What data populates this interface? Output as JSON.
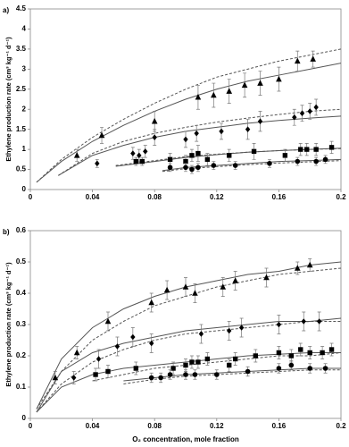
{
  "chart_data": [
    {
      "type": "scatter",
      "panel": "a)",
      "ylabel": "Ethylene production rate (cm³ kg⁻¹ d⁻¹)",
      "xlim": [
        0,
        0.2
      ],
      "xticks": [
        0,
        0.04,
        0.08,
        0.12,
        0.16,
        0.2
      ],
      "ylim": [
        0,
        4.5
      ],
      "yticks": [
        0,
        0.5,
        1,
        1.5,
        2,
        2.5,
        3,
        3.5,
        4,
        4.5
      ],
      "series": [
        {
          "marker": "triangle",
          "color": "#000000",
          "x": [
            0.03,
            0.046,
            0.08,
            0.108,
            0.118,
            0.128,
            0.138,
            0.148,
            0.16,
            0.172,
            0.182
          ],
          "values": [
            0.85,
            1.35,
            1.7,
            2.3,
            2.35,
            2.45,
            2.6,
            2.65,
            2.75,
            3.2,
            3.25
          ],
          "errors": [
            0.15,
            0.2,
            0.25,
            0.3,
            0.3,
            0.3,
            0.3,
            0.3,
            0.3,
            0.25,
            0.2
          ]
        },
        {
          "marker": "diamond",
          "color": "#000000",
          "x": [
            0.043,
            0.066,
            0.07,
            0.074,
            0.08,
            0.1,
            0.107,
            0.123,
            0.14,
            0.148,
            0.17,
            0.175,
            0.18,
            0.184
          ],
          "values": [
            0.65,
            0.9,
            0.85,
            0.95,
            1.3,
            1.25,
            1.4,
            1.45,
            1.5,
            1.7,
            1.8,
            1.9,
            1.95,
            2.05
          ],
          "errors": [
            0.1,
            0.15,
            0.15,
            0.15,
            0.2,
            0.2,
            0.2,
            0.2,
            0.25,
            0.25,
            0.2,
            0.2,
            0.2,
            0.2
          ]
        },
        {
          "marker": "square",
          "color": "#000000",
          "x": [
            0.068,
            0.072,
            0.09,
            0.1,
            0.104,
            0.108,
            0.114,
            0.128,
            0.144,
            0.164,
            0.174,
            0.178,
            0.184,
            0.194
          ],
          "values": [
            0.7,
            0.7,
            0.75,
            0.7,
            0.85,
            0.9,
            0.75,
            0.85,
            0.95,
            0.85,
            1,
            1,
            1,
            1.05
          ],
          "errors": [
            0.1,
            0.1,
            0.15,
            0.15,
            0.15,
            0.2,
            0.15,
            0.15,
            0.2,
            0.15,
            0.15,
            0.15,
            0.15,
            0.15
          ]
        },
        {
          "marker": "circle",
          "color": "#000000",
          "x": [
            0.09,
            0.1,
            0.104,
            0.108,
            0.118,
            0.132,
            0.154,
            0.172,
            0.184,
            0.19
          ],
          "values": [
            0.55,
            0.55,
            0.5,
            0.55,
            0.6,
            0.6,
            0.65,
            0.7,
            0.7,
            0.75
          ],
          "errors": [
            0.1,
            0.1,
            0.1,
            0.1,
            0.1,
            0.1,
            0.1,
            0.1,
            0.1,
            0.1
          ]
        }
      ],
      "curves": [
        {
          "dashed": false,
          "color": "#555555",
          "x": [
            0.004,
            0.02,
            0.04,
            0.06,
            0.08,
            0.1,
            0.12,
            0.14,
            0.16,
            0.18,
            0.2
          ],
          "values": [
            0.18,
            0.7,
            1.2,
            1.6,
            1.95,
            2.25,
            2.5,
            2.7,
            2.85,
            3,
            3.15
          ]
        },
        {
          "dashed": true,
          "color": "#555555",
          "x": [
            0.004,
            0.02,
            0.04,
            0.06,
            0.08,
            0.1,
            0.12,
            0.14,
            0.16,
            0.18,
            0.2
          ],
          "values": [
            0.18,
            0.75,
            1.3,
            1.75,
            2.15,
            2.5,
            2.8,
            3,
            3.2,
            3.35,
            3.5
          ]
        },
        {
          "dashed": false,
          "color": "#555555",
          "x": [
            0.018,
            0.04,
            0.06,
            0.08,
            0.1,
            0.12,
            0.14,
            0.16,
            0.18,
            0.2
          ],
          "values": [
            0.35,
            0.85,
            1.1,
            1.3,
            1.45,
            1.55,
            1.65,
            1.72,
            1.78,
            1.83
          ]
        },
        {
          "dashed": true,
          "color": "#555555",
          "x": [
            0.018,
            0.04,
            0.06,
            0.08,
            0.1,
            0.12,
            0.14,
            0.16,
            0.18,
            0.2
          ],
          "values": [
            0.35,
            0.9,
            1.2,
            1.4,
            1.55,
            1.68,
            1.78,
            1.87,
            1.95,
            2
          ]
        },
        {
          "dashed": false,
          "color": "#555555",
          "x": [
            0.055,
            0.08,
            0.1,
            0.12,
            0.14,
            0.16,
            0.18,
            0.2
          ],
          "values": [
            0.58,
            0.7,
            0.8,
            0.87,
            0.93,
            0.97,
            1,
            1.03
          ]
        },
        {
          "dashed": true,
          "color": "#555555",
          "x": [
            0.055,
            0.08,
            0.1,
            0.12,
            0.14,
            0.16,
            0.18,
            0.2
          ],
          "values": [
            0.6,
            0.72,
            0.82,
            0.88,
            0.93,
            0.97,
            1,
            1.02
          ]
        },
        {
          "dashed": false,
          "color": "#555555",
          "x": [
            0.085,
            0.1,
            0.12,
            0.14,
            0.16,
            0.18,
            0.2
          ],
          "values": [
            0.47,
            0.55,
            0.6,
            0.65,
            0.7,
            0.72,
            0.75
          ]
        },
        {
          "dashed": true,
          "color": "#555555",
          "x": [
            0.085,
            0.1,
            0.12,
            0.14,
            0.16,
            0.18,
            0.2
          ],
          "values": [
            0.45,
            0.52,
            0.57,
            0.62,
            0.66,
            0.69,
            0.72
          ]
        }
      ]
    },
    {
      "type": "scatter",
      "panel": "b)",
      "ylabel": "Ethylene production rate (cm³ kg⁻¹ d⁻¹)",
      "xlabel": "O₂ concentration, mole fraction",
      "xlim": [
        0,
        0.2
      ],
      "xticks": [
        0,
        0.04,
        0.08,
        0.12,
        0.16,
        0.2
      ],
      "ylim": [
        0,
        0.6
      ],
      "yticks": [
        0,
        0.1,
        0.2,
        0.3,
        0.4,
        0.5,
        0.6
      ],
      "series": [
        {
          "marker": "triangle",
          "color": "#000000",
          "x": [
            0.016,
            0.03,
            0.05,
            0.078,
            0.088,
            0.1,
            0.106,
            0.124,
            0.132,
            0.152,
            0.172,
            0.18
          ],
          "values": [
            0.13,
            0.21,
            0.31,
            0.37,
            0.41,
            0.42,
            0.4,
            0.42,
            0.44,
            0.45,
            0.48,
            0.49
          ],
          "errors": [
            0.02,
            0.02,
            0.03,
            0.03,
            0.03,
            0.03,
            0.03,
            0.03,
            0.03,
            0.03,
            0.02,
            0.02
          ]
        },
        {
          "marker": "diamond",
          "color": "#000000",
          "x": [
            0.028,
            0.044,
            0.056,
            0.066,
            0.078,
            0.11,
            0.128,
            0.136,
            0.16,
            0.176,
            0.186
          ],
          "values": [
            0.13,
            0.19,
            0.23,
            0.26,
            0.24,
            0.27,
            0.28,
            0.29,
            0.3,
            0.31,
            0.31
          ],
          "errors": [
            0.02,
            0.03,
            0.03,
            0.03,
            0.03,
            0.03,
            0.03,
            0.03,
            0.03,
            0.03,
            0.03
          ]
        },
        {
          "marker": "square",
          "color": "#000000",
          "x": [
            0.042,
            0.05,
            0.068,
            0.092,
            0.1,
            0.104,
            0.108,
            0.114,
            0.128,
            0.132,
            0.145,
            0.16,
            0.168,
            0.174,
            0.18,
            0.188,
            0.194
          ],
          "values": [
            0.14,
            0.15,
            0.16,
            0.16,
            0.17,
            0.18,
            0.18,
            0.19,
            0.17,
            0.19,
            0.2,
            0.21,
            0.2,
            0.22,
            0.21,
            0.21,
            0.22
          ],
          "errors": [
            0.02,
            0.02,
            0.02,
            0.02,
            0.02,
            0.02,
            0.02,
            0.02,
            0.02,
            0.02,
            0.02,
            0.02,
            0.02,
            0.02,
            0.02,
            0.02,
            0.02
          ]
        },
        {
          "marker": "circle",
          "color": "#000000",
          "x": [
            0.078,
            0.084,
            0.09,
            0.1,
            0.106,
            0.12,
            0.14,
            0.16,
            0.168,
            0.18,
            0.19
          ],
          "values": [
            0.13,
            0.13,
            0.14,
            0.14,
            0.14,
            0.14,
            0.15,
            0.16,
            0.17,
            0.16,
            0.16
          ],
          "errors": [
            0.015,
            0.015,
            0.015,
            0.015,
            0.015,
            0.015,
            0.015,
            0.015,
            0.015,
            0.015,
            0.015
          ]
        }
      ],
      "curves": [
        {
          "dashed": false,
          "color": "#555555",
          "x": [
            0.004,
            0.02,
            0.04,
            0.06,
            0.08,
            0.1,
            0.12,
            0.14,
            0.16,
            0.18,
            0.2
          ],
          "values": [
            0.03,
            0.19,
            0.29,
            0.35,
            0.39,
            0.42,
            0.44,
            0.46,
            0.47,
            0.49,
            0.5
          ]
        },
        {
          "dashed": true,
          "color": "#555555",
          "x": [
            0.004,
            0.02,
            0.04,
            0.06,
            0.08,
            0.1,
            0.12,
            0.14,
            0.16,
            0.18,
            0.2
          ],
          "values": [
            0.03,
            0.15,
            0.25,
            0.31,
            0.36,
            0.39,
            0.42,
            0.44,
            0.46,
            0.47,
            0.48
          ]
        },
        {
          "dashed": false,
          "color": "#555555",
          "x": [
            0.004,
            0.02,
            0.04,
            0.06,
            0.08,
            0.1,
            0.12,
            0.14,
            0.16,
            0.18,
            0.2
          ],
          "values": [
            0.02,
            0.15,
            0.21,
            0.24,
            0.26,
            0.28,
            0.29,
            0.3,
            0.31,
            0.31,
            0.32
          ]
        },
        {
          "dashed": true,
          "color": "#555555",
          "x": [
            0.004,
            0.02,
            0.04,
            0.06,
            0.08,
            0.1,
            0.12,
            0.14,
            0.16,
            0.18,
            0.2
          ],
          "values": [
            0.02,
            0.11,
            0.18,
            0.22,
            0.25,
            0.27,
            0.28,
            0.29,
            0.3,
            0.31,
            0.31
          ]
        },
        {
          "dashed": false,
          "color": "#555555",
          "x": [
            0.004,
            0.02,
            0.04,
            0.06,
            0.08,
            0.1,
            0.12,
            0.14,
            0.16,
            0.18,
            0.2
          ],
          "values": [
            0.02,
            0.1,
            0.14,
            0.16,
            0.17,
            0.18,
            0.19,
            0.2,
            0.205,
            0.21,
            0.21
          ]
        },
        {
          "dashed": true,
          "color": "#555555",
          "x": [
            0.04,
            0.06,
            0.08,
            0.1,
            0.12,
            0.14,
            0.16,
            0.18,
            0.2
          ],
          "values": [
            0.12,
            0.14,
            0.16,
            0.17,
            0.18,
            0.19,
            0.2,
            0.2,
            0.21
          ]
        },
        {
          "dashed": false,
          "color": "#555555",
          "x": [
            0.06,
            0.08,
            0.1,
            0.12,
            0.14,
            0.16,
            0.18,
            0.2
          ],
          "values": [
            0.12,
            0.13,
            0.14,
            0.145,
            0.15,
            0.155,
            0.16,
            0.16
          ]
        },
        {
          "dashed": true,
          "color": "#555555",
          "x": [
            0.06,
            0.08,
            0.1,
            0.12,
            0.14,
            0.16,
            0.18,
            0.2
          ],
          "values": [
            0.11,
            0.125,
            0.135,
            0.14,
            0.145,
            0.15,
            0.155,
            0.155
          ]
        }
      ]
    }
  ]
}
